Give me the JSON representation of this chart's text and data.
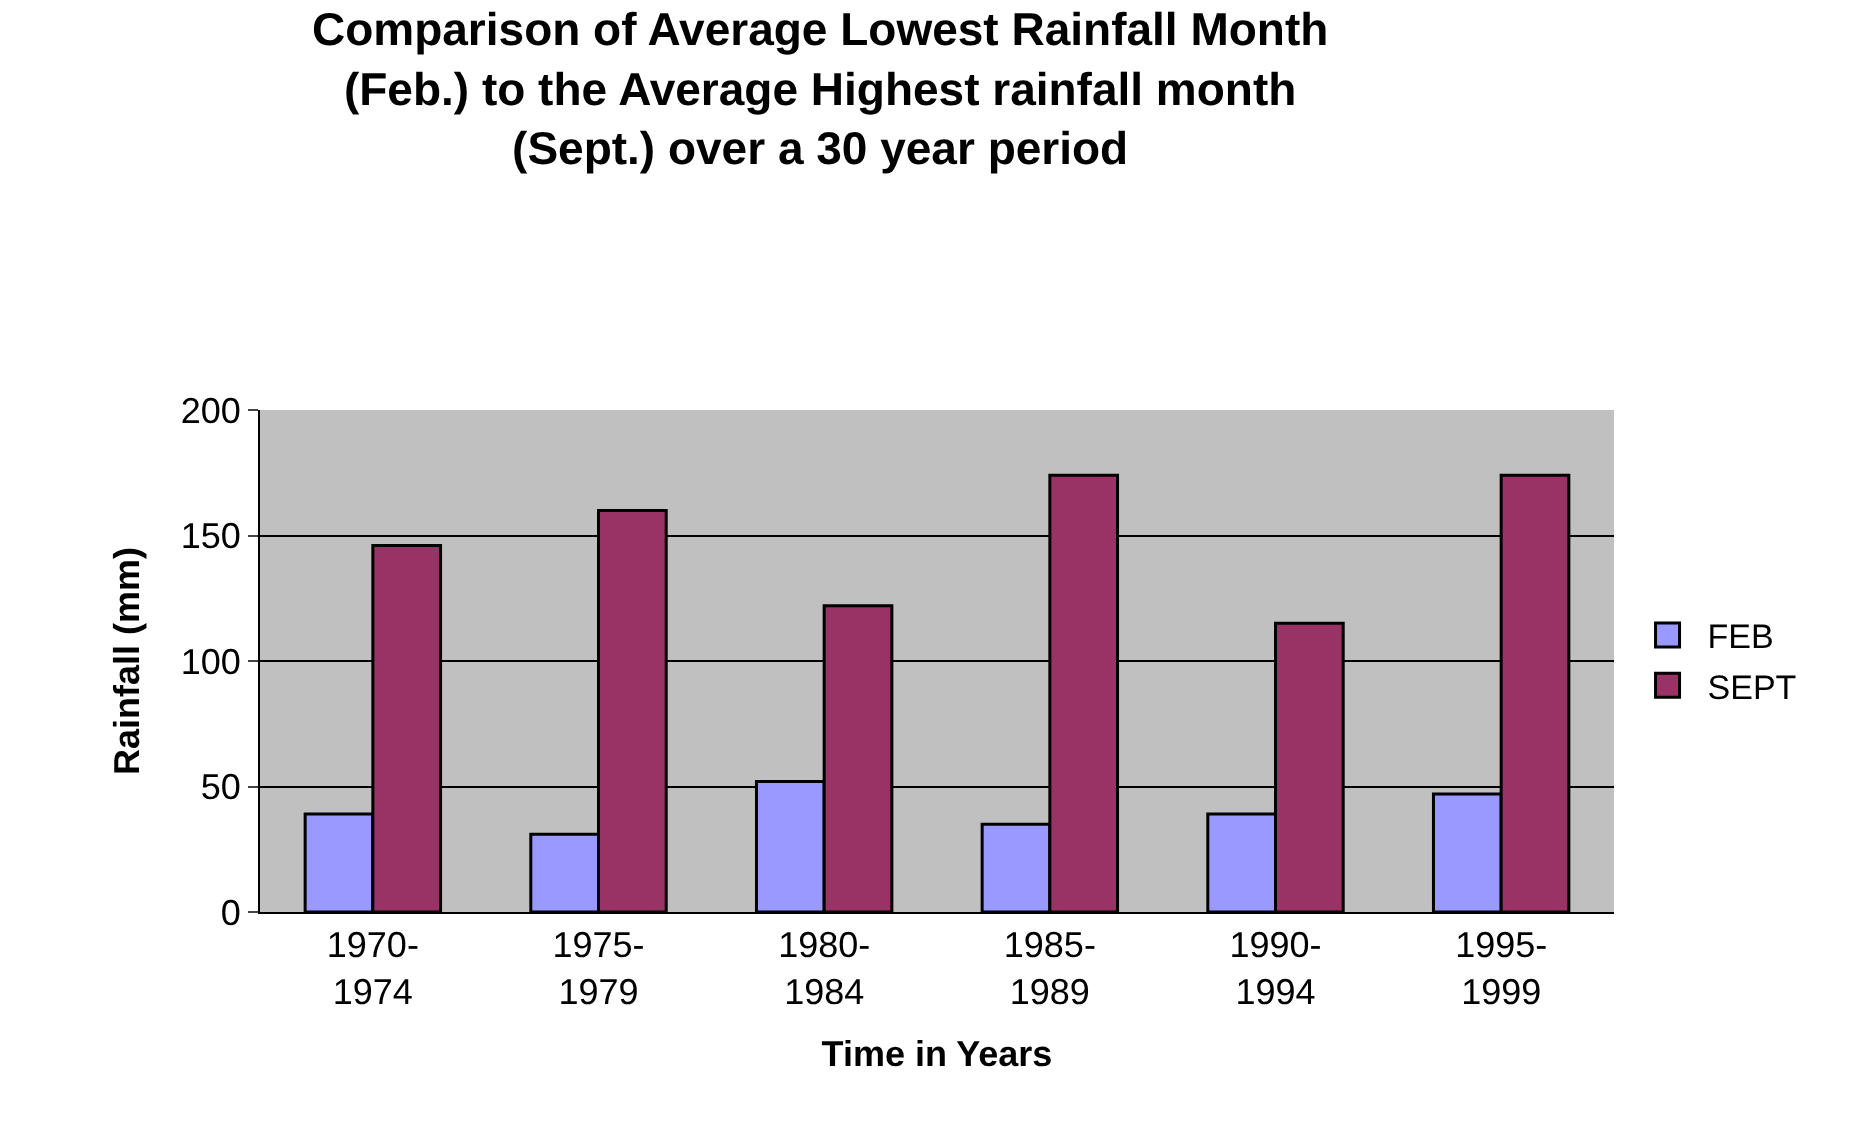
{
  "chart_data": {
    "type": "bar",
    "title": "Comparison of Average Lowest Rainfall Month\n(Feb.) to the Average Highest rainfall month\n(Sept.) over a 30 year period",
    "xlabel": "Time in Years",
    "ylabel": "Rainfall (mm)",
    "categories": [
      "1970-\n1974",
      "1975-\n1979",
      "1980-\n1984",
      "1985-\n1989",
      "1990-\n1994",
      "1995-\n1999"
    ],
    "series": [
      {
        "name": "FEB",
        "color": "#9999ff",
        "values": [
          39,
          31,
          52,
          35,
          39,
          47
        ]
      },
      {
        "name": "SEPT",
        "color": "#993366",
        "values": [
          146,
          160,
          122,
          174,
          115,
          174
        ]
      }
    ],
    "ylim": [
      0,
      200
    ],
    "yticks": [
      0,
      50,
      100,
      150,
      200
    ],
    "grid": "y",
    "legend": "right"
  }
}
